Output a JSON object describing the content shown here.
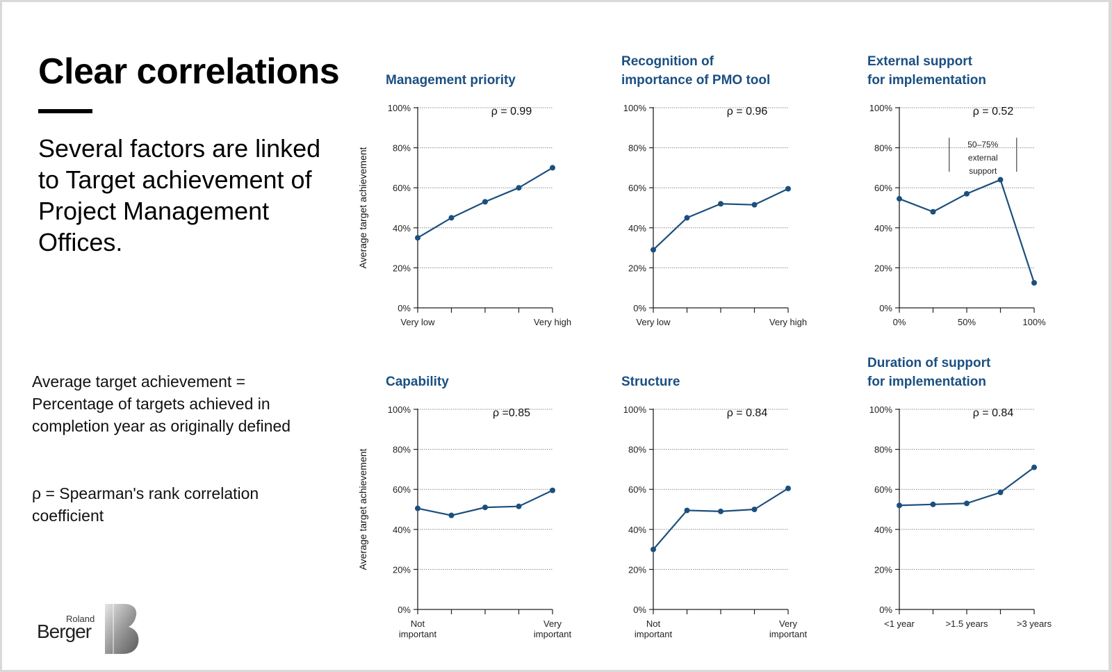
{
  "page": {
    "title": "Clear correlations",
    "subtitle": "Several factors are linked to Target achievement of Project Management Offices.",
    "note_1": "Average target achievement = Percentage of targets achieved in completion year as originally defined",
    "note_2": "ρ = Spearman's rank correlation coefficient",
    "logo_line1": "Roland",
    "logo_line2": "Berger"
  },
  "colors": {
    "accent": "#1a4f82",
    "line": "#1b4f7e",
    "text": "#000000"
  },
  "chart_data": [
    {
      "id": "management-priority",
      "type": "line",
      "title": [
        "Management priority"
      ],
      "ylabel": "Average target achievement",
      "yticks": [
        "0%",
        "20%",
        "40%",
        "60%",
        "80%",
        "100%"
      ],
      "ylim": [
        0,
        100
      ],
      "x": [
        0,
        1,
        2,
        3,
        4
      ],
      "xlim": [
        0,
        4
      ],
      "xticks": [
        0,
        1,
        2,
        3,
        4
      ],
      "xtick_labels": [
        {
          "x": 0,
          "lines": [
            "Very low"
          ]
        },
        {
          "x": 4,
          "lines": [
            "Very high"
          ]
        }
      ],
      "values": [
        35,
        45,
        53,
        60,
        70
      ],
      "rho": "ρ = 0.99",
      "grid": true
    },
    {
      "id": "pmo-tool",
      "type": "line",
      "title": [
        "Recognition of",
        "importance of PMO tool"
      ],
      "ylabel": "",
      "yticks": [
        "0%",
        "20%",
        "40%",
        "60%",
        "80%",
        "100%"
      ],
      "ylim": [
        0,
        100
      ],
      "x": [
        0,
        1,
        2,
        3,
        4
      ],
      "xlim": [
        0,
        4
      ],
      "xticks": [
        0,
        1,
        2,
        3,
        4
      ],
      "xtick_labels": [
        {
          "x": 0,
          "lines": [
            "Very low"
          ]
        },
        {
          "x": 4,
          "lines": [
            "Very high"
          ]
        }
      ],
      "values": [
        29,
        45,
        52,
        51.5,
        59.5
      ],
      "rho": "ρ = 0.96",
      "grid": true
    },
    {
      "id": "external-support",
      "type": "line",
      "title": [
        "External support",
        "for implementation"
      ],
      "ylabel": "",
      "yticks": [
        "0%",
        "20%",
        "40%",
        "60%",
        "80%",
        "100%"
      ],
      "ylim": [
        0,
        100
      ],
      "x": [
        0,
        25,
        50,
        75,
        100
      ],
      "xlim": [
        0,
        100
      ],
      "xticks": [
        0,
        25,
        50,
        75,
        100
      ],
      "xtick_labels": [
        {
          "x": 0,
          "lines": [
            "0%"
          ]
        },
        {
          "x": 50,
          "lines": [
            "50%"
          ]
        },
        {
          "x": 100,
          "lines": [
            "100%"
          ]
        }
      ],
      "values": [
        54.5,
        48,
        57,
        64,
        12.5
      ],
      "rho": "ρ = 0.52",
      "grid": true,
      "annotation": {
        "lines": [
          "50–75%",
          "external",
          "support"
        ],
        "x_range": [
          37,
          87
        ],
        "y_range": [
          68,
          85
        ]
      }
    },
    {
      "id": "capability",
      "type": "line",
      "title": [
        "Capability"
      ],
      "ylabel": "Average target achievement",
      "yticks": [
        "0%",
        "20%",
        "40%",
        "60%",
        "80%",
        "100%"
      ],
      "ylim": [
        0,
        100
      ],
      "x": [
        0,
        1,
        2,
        3,
        4
      ],
      "xlim": [
        0,
        4
      ],
      "xticks": [
        0,
        1,
        2,
        3,
        4
      ],
      "xtick_labels": [
        {
          "x": 0,
          "lines": [
            "Not",
            "important"
          ]
        },
        {
          "x": 4,
          "lines": [
            "Very",
            "important"
          ]
        }
      ],
      "values": [
        50.5,
        47,
        51,
        51.5,
        59.5
      ],
      "rho": "ρ =0.85",
      "grid": true
    },
    {
      "id": "structure",
      "type": "line",
      "title": [
        "Structure"
      ],
      "ylabel": "",
      "yticks": [
        "0%",
        "20%",
        "40%",
        "60%",
        "80%",
        "100%"
      ],
      "ylim": [
        0,
        100
      ],
      "x": [
        0,
        1,
        2,
        3,
        4
      ],
      "xlim": [
        0,
        4
      ],
      "xticks": [
        0,
        1,
        2,
        3,
        4
      ],
      "xtick_labels": [
        {
          "x": 0,
          "lines": [
            "Not",
            "important"
          ]
        },
        {
          "x": 4,
          "lines": [
            "Very",
            "important"
          ]
        }
      ],
      "values": [
        30,
        49.5,
        49,
        50,
        60.5
      ],
      "rho": "ρ = 0.84",
      "grid": true
    },
    {
      "id": "support-duration",
      "type": "line",
      "title": [
        "Duration of support",
        "for implementation"
      ],
      "ylabel": "",
      "yticks": [
        "0%",
        "20%",
        "40%",
        "60%",
        "80%",
        "100%"
      ],
      "ylim": [
        0,
        100
      ],
      "x": [
        0,
        1,
        2,
        3,
        4
      ],
      "xlim": [
        0,
        4
      ],
      "xticks": [
        0,
        1,
        2,
        3,
        4
      ],
      "xtick_labels": [
        {
          "x": 0,
          "lines": [
            "<1 year"
          ]
        },
        {
          "x": 2,
          "lines": [
            ">1.5 years"
          ]
        },
        {
          "x": 4,
          "lines": [
            ">3 years"
          ]
        }
      ],
      "values": [
        52,
        52.5,
        53,
        58.5,
        71
      ],
      "rho": "ρ = 0.84",
      "grid": true
    }
  ]
}
